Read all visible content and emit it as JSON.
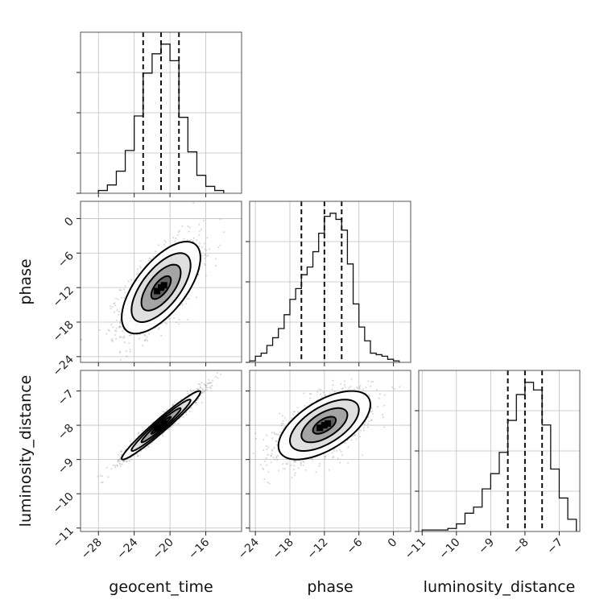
{
  "chart_data": {
    "type": "corner",
    "parameters": [
      "geocent_time",
      "phase",
      "luminosity_distance"
    ],
    "axis_labels": {
      "x": [
        "geocent_time",
        "phase",
        "luminosity_distance"
      ],
      "y": [
        "",
        "phase",
        "luminosity_distance"
      ]
    },
    "ranges": {
      "geocent_time": [
        -30,
        -12
      ],
      "phase": [
        -25,
        3
      ],
      "luminosity_distance": [
        -11.1,
        -6.4
      ]
    },
    "ticks": {
      "geocent_time": [
        -28,
        -24,
        -20,
        -16
      ],
      "phase": [
        -24,
        -18,
        -12,
        -6,
        0
      ],
      "luminosity_distance": [
        -11,
        -10,
        -9,
        -8,
        -7
      ]
    },
    "tick_labels": {
      "geocent_time": [
        "−28",
        "−24",
        "−20",
        "−16"
      ],
      "phase": [
        "−24",
        "−18",
        "−12",
        "−6",
        "0"
      ],
      "luminosity_distance": [
        "−11",
        "−10",
        "−9",
        "−8",
        "−7"
      ]
    },
    "grid": true,
    "histograms": [
      {
        "parameter": "geocent_time",
        "bin_edges": [
          -28,
          -27,
          -26,
          -25,
          -24,
          -23,
          -22,
          -21,
          -20,
          -19,
          -18,
          -17,
          -16,
          -15,
          -14
        ],
        "counts": [
          2,
          6,
          16,
          31,
          56,
          87,
          101,
          108,
          96,
          55,
          30,
          13,
          5,
          2
        ],
        "quantiles": [
          -23,
          -21,
          -19
        ]
      },
      {
        "parameter": "phase",
        "bin_edges": [
          -25,
          -24,
          -23,
          -22,
          -21,
          -20,
          -19,
          -18,
          -17,
          -16,
          -15,
          -14,
          -13,
          -12,
          -11,
          -10,
          -9,
          -8,
          -7,
          -6,
          -5,
          -4,
          -3,
          -2,
          -1,
          0,
          1
        ],
        "counts": [
          1,
          4,
          6,
          11,
          16,
          22,
          31,
          41,
          48,
          57,
          62,
          72,
          84,
          95,
          97,
          93,
          86,
          64,
          38,
          23,
          14,
          6,
          5,
          4,
          2,
          1
        ],
        "quantiles": [
          -16,
          -12,
          -9
        ]
      },
      {
        "parameter": "luminosity_distance",
        "bin_edges": [
          -11,
          -10.75,
          -10.5,
          -10.25,
          -10,
          -9.75,
          -9.5,
          -9.25,
          -9,
          -8.75,
          -8.5,
          -8.25,
          -8,
          -7.75,
          -7.5,
          -7.25,
          -7,
          -6.75,
          -6.5
        ],
        "counts": [
          1,
          1,
          1,
          2,
          5,
          12,
          16,
          28,
          38,
          52,
          73,
          90,
          98,
          93,
          70,
          41,
          22,
          8
        ],
        "quantiles": [
          -8.5,
          -8,
          -7.5
        ]
      }
    ],
    "pairs": [
      {
        "x": "geocent_time",
        "y": "phase",
        "center": [
          -21,
          -12
        ],
        "sd": [
          2.2,
          4
        ],
        "rho": 0.65
      },
      {
        "x": "geocent_time",
        "y": "luminosity_distance",
        "center": [
          -21,
          -8
        ],
        "sd": [
          2.2,
          0.5
        ],
        "rho": 0.97
      },
      {
        "x": "phase",
        "y": "luminosity_distance",
        "center": [
          -12,
          -8
        ],
        "sd": [
          4,
          0.5
        ],
        "rho": 0.6
      }
    ],
    "contour_levels_sigma": [
      0.5,
      1,
      1.5,
      2
    ]
  }
}
